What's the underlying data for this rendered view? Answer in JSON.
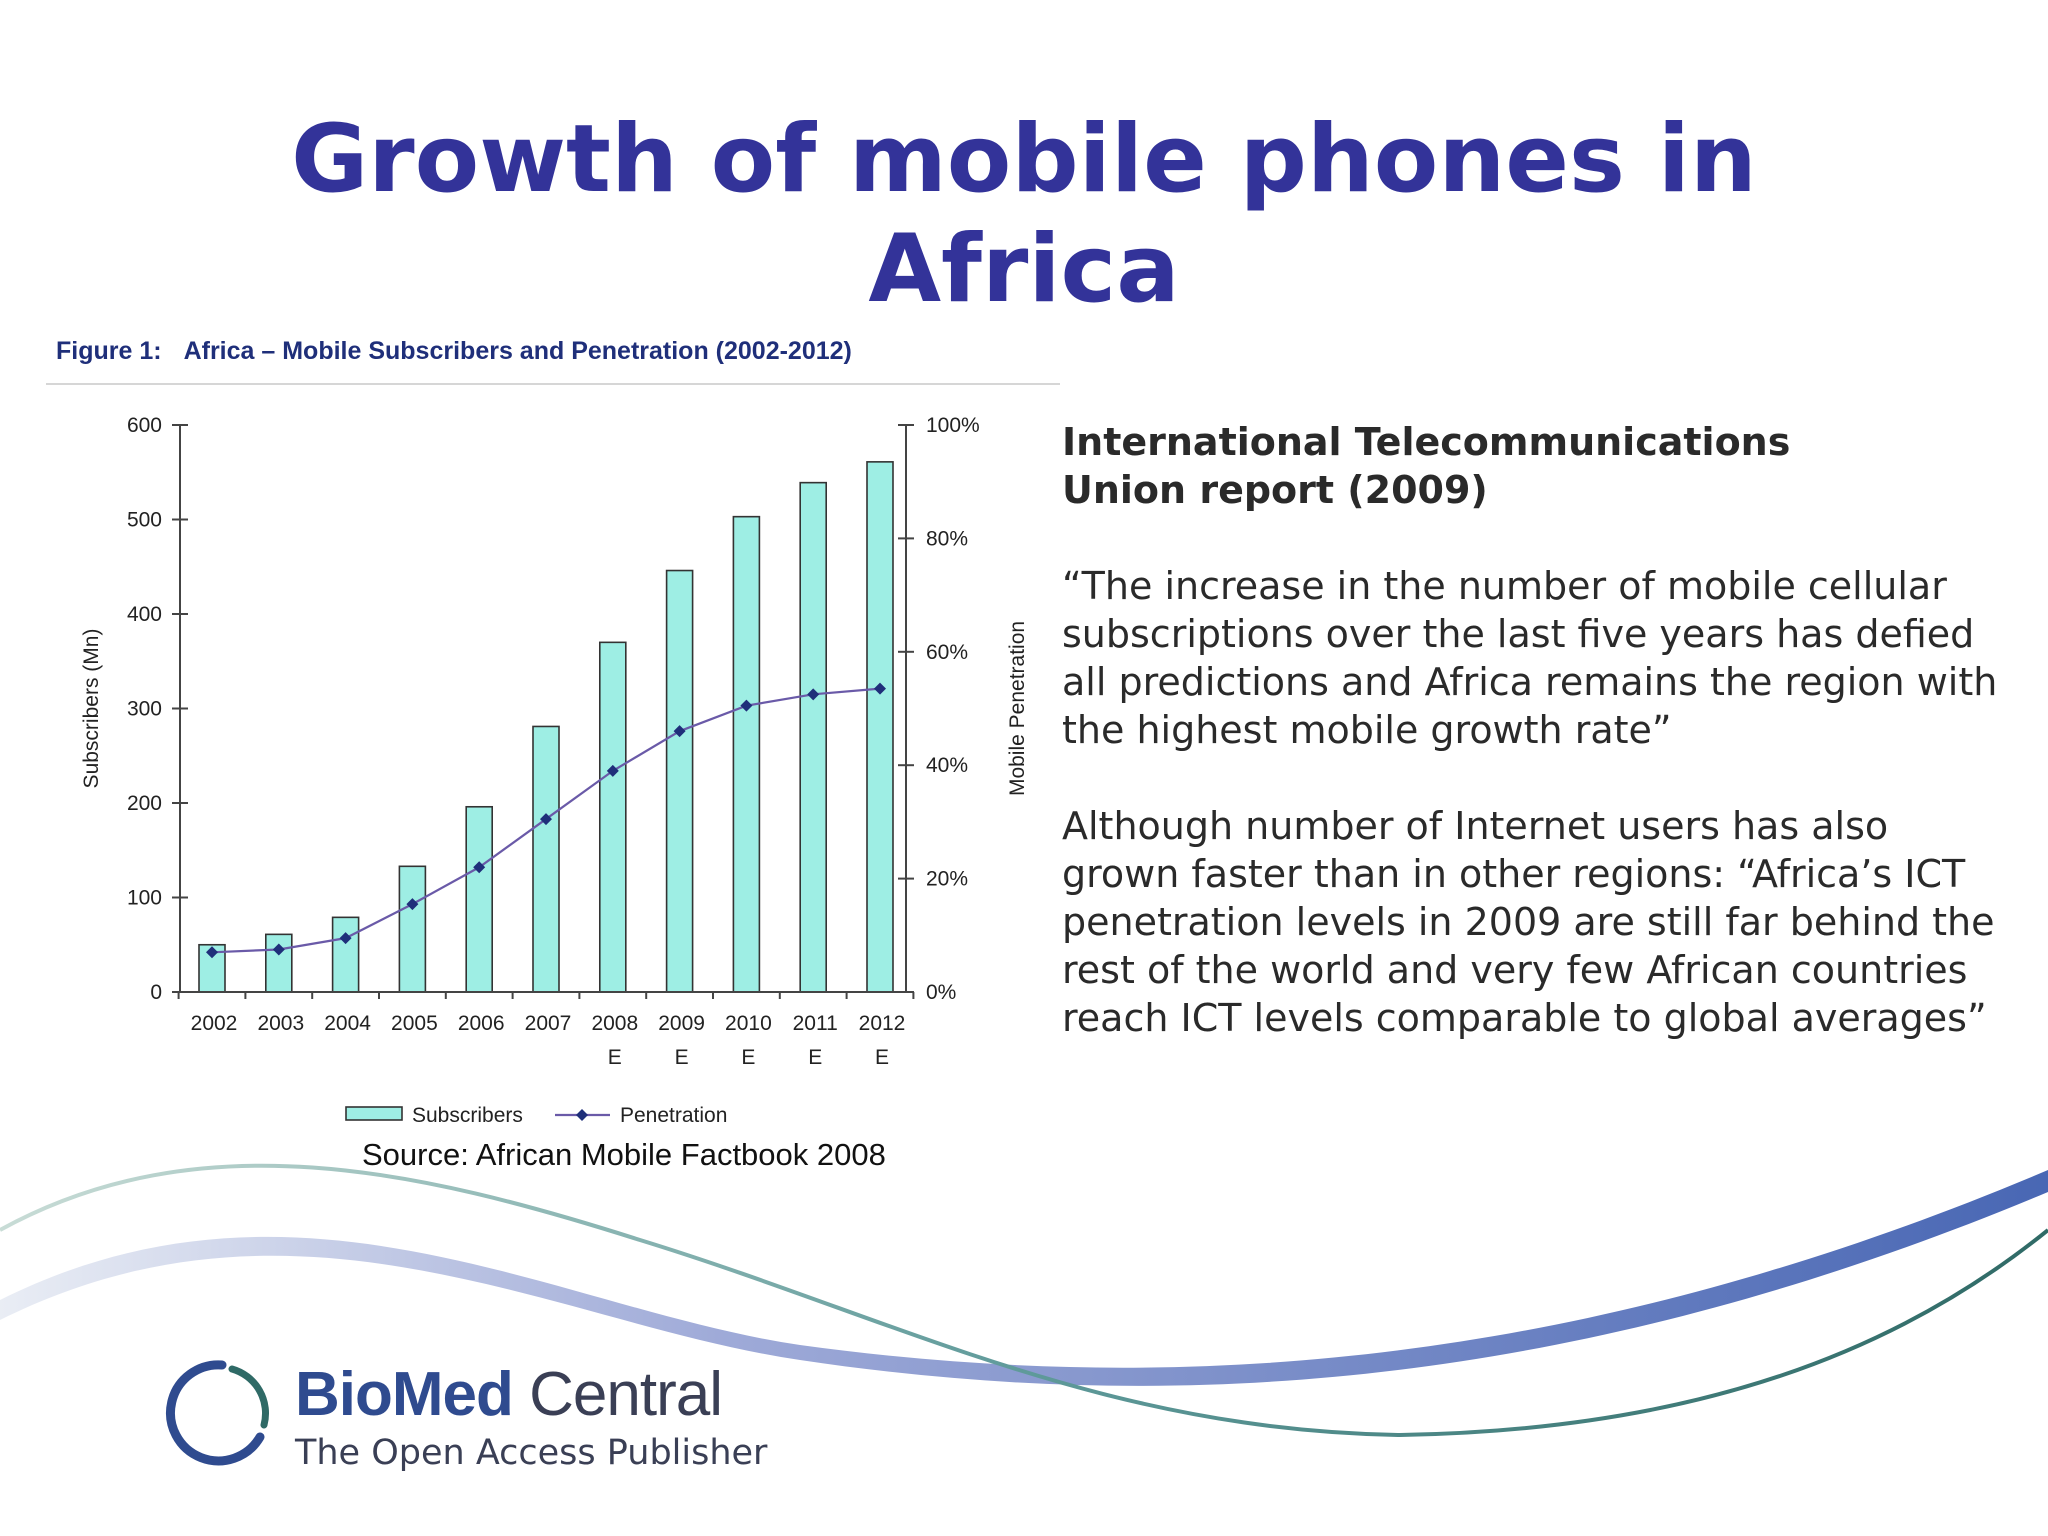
{
  "slide": {
    "title_line1": "Growth of mobile phones in",
    "title_line2": "Africa",
    "title_color": "#333399"
  },
  "figure": {
    "number": "Figure 1:",
    "caption": "Africa – Mobile Subscribers and Penetration (2002-2012)",
    "source": "Source: African Mobile Factbook 2008"
  },
  "chart_data": {
    "type": "bar",
    "categories": [
      "2002",
      "2003",
      "2004",
      "2005",
      "2006",
      "2007",
      "2008",
      "2009",
      "2010",
      "2011",
      "2012"
    ],
    "category_suffix": [
      "",
      "",
      "",
      "",
      "",
      "",
      "E",
      "E",
      "E",
      "E",
      "E"
    ],
    "series": [
      {
        "name": "Subscribers",
        "type": "bar",
        "axis": "left",
        "values": [
          50,
          61,
          79,
          133,
          196,
          281,
          370,
          446,
          503,
          539,
          561
        ],
        "color": "#9eeee4"
      },
      {
        "name": "Penetration",
        "type": "line",
        "axis": "right",
        "values": [
          7,
          7.5,
          9.5,
          15.5,
          22,
          30.5,
          39,
          46,
          50.5,
          52.5,
          53.5
        ],
        "color": "#1f2f7a"
      }
    ],
    "ylabel": "Subscribers (Mn)",
    "y2label": "Mobile Penetration",
    "ylim": [
      0,
      600
    ],
    "y2lim": [
      0,
      100
    ],
    "yticks": [
      "0",
      "100",
      "200",
      "300",
      "400",
      "500",
      "600"
    ],
    "y2ticks": [
      "0%",
      "20%",
      "40%",
      "60%",
      "80%",
      "100%"
    ],
    "legend_position": "bottom",
    "grid": false
  },
  "report": {
    "heading_line1": "International Telecommunications",
    "heading_line2": "Union report (2009)",
    "quote1": "“The increase in the number of mobile cellular subscriptions over the last five years has defied all predictions and Africa remains the region with the highest mobile growth rate”",
    "quote2": "Although number of Internet users has also grown faster than in other regions: “Africa’s ICT penetration levels in 2009 are still far behind the rest of the world and very few African countries reach ICT levels comparable to global averages”"
  },
  "logo": {
    "bio": "BioMed",
    "central": " Central",
    "tagline": "The Open Access Publisher"
  }
}
